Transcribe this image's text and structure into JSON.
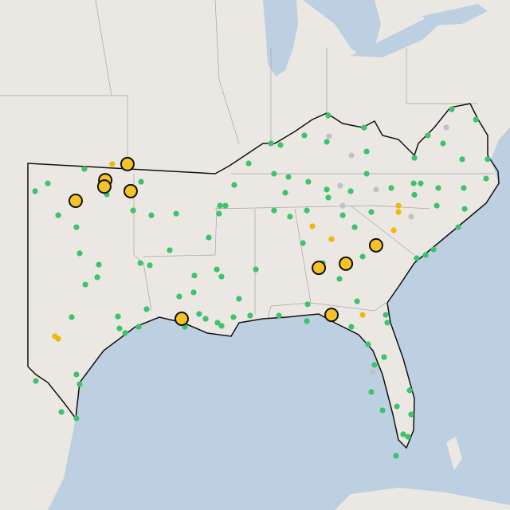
{
  "map": {
    "groups": [
      {
        "color": "#3cc46c",
        "outlined": false,
        "points": [
          [
            -96.94,
            36.76
          ],
          [
            -98.87,
            36.13
          ],
          [
            -99.54,
            35.79
          ],
          [
            -98.32,
            34.74
          ],
          [
            -97.36,
            34.22
          ],
          [
            -95.76,
            35.65
          ],
          [
            -93.95,
            36.2
          ],
          [
            -94.37,
            34.95
          ],
          [
            -93.41,
            34.74
          ],
          [
            -92.1,
            34.81
          ],
          [
            -97.19,
            33.08
          ],
          [
            -96.18,
            32.59
          ],
          [
            -96.89,
            31.72
          ],
          [
            -96.26,
            32.04
          ],
          [
            -93.99,
            32.66
          ],
          [
            -93.49,
            32.56
          ],
          [
            -92.44,
            33.22
          ],
          [
            -90.38,
            33.77
          ],
          [
            -89.79,
            35.16
          ],
          [
            -89.5,
            35.16
          ],
          [
            -89.04,
            36.06
          ],
          [
            -88.28,
            37.0
          ],
          [
            -87.1,
            37.87
          ],
          [
            -86.6,
            37.8
          ],
          [
            -85.34,
            38.22
          ],
          [
            -84.08,
            39.09
          ],
          [
            -82.19,
            38.56
          ],
          [
            -84.16,
            37.94
          ],
          [
            -82.06,
            37.52
          ],
          [
            -86.94,
            36.55
          ],
          [
            -86.18,
            36.41
          ],
          [
            -85.13,
            36.2
          ],
          [
            -86.35,
            35.72
          ],
          [
            -86.94,
            34.95
          ],
          [
            -86.1,
            34.68
          ],
          [
            -85.21,
            34.95
          ],
          [
            -84.16,
            35.86
          ],
          [
            -84.08,
            35.51
          ],
          [
            -82.9,
            35.79
          ],
          [
            -82.06,
            36.55
          ],
          [
            -79.54,
            37.24
          ],
          [
            -78.03,
            37.87
          ],
          [
            -77.57,
            39.36
          ],
          [
            -76.3,
            38.91
          ],
          [
            -75.68,
            37.18
          ],
          [
            -79.58,
            36.13
          ],
          [
            -79.21,
            36.13
          ],
          [
            -78.28,
            35.93
          ],
          [
            -76.94,
            35.93
          ],
          [
            -76.89,
            35.02
          ],
          [
            -78.36,
            35.16
          ],
          [
            -79.54,
            35.63
          ],
          [
            -80.76,
            35.93
          ],
          [
            -81.81,
            34.88
          ],
          [
            -83.32,
            34.74
          ],
          [
            -82.69,
            34.22
          ],
          [
            -84.37,
            32.66
          ],
          [
            -85.42,
            33.53
          ],
          [
            -87.9,
            32.38
          ],
          [
            -89.96,
            32.38
          ],
          [
            -91.14,
            32.11
          ],
          [
            -91.18,
            31.38
          ],
          [
            -91.94,
            31.2
          ],
          [
            -93.66,
            30.65
          ],
          [
            -94.08,
            29.88
          ],
          [
            -95.17,
            30.33
          ],
          [
            -95.09,
            29.81
          ],
          [
            -94.79,
            29.61
          ],
          [
            -97.61,
            30.3
          ],
          [
            -97.36,
            27.8
          ],
          [
            -97.19,
            27.38
          ],
          [
            -99.5,
            27.52
          ],
          [
            -98.15,
            26.17
          ],
          [
            -97.36,
            25.89
          ],
          [
            -90.89,
            30.44
          ],
          [
            -90.55,
            30.23
          ],
          [
            -89.92,
            30.06
          ],
          [
            -89.71,
            29.92
          ],
          [
            -89.08,
            30.3
          ],
          [
            -88.2,
            30.37
          ],
          [
            -86.68,
            30.37
          ],
          [
            -85.17,
            30.86
          ],
          [
            -85.21,
            30.13
          ],
          [
            -82.86,
            29.88
          ],
          [
            -81.98,
            29.12
          ],
          [
            -81.05,
            30.4
          ],
          [
            -80.97,
            30.06
          ],
          [
            -81.14,
            28.56
          ],
          [
            -81.81,
            27.04
          ],
          [
            -81.22,
            26.24
          ],
          [
            -80.46,
            26.41
          ],
          [
            -79.71,
            26.06
          ],
          [
            -79.79,
            27.11
          ],
          [
            -79.88,
            25.09
          ],
          [
            -80.13,
            25.2
          ],
          [
            -80.51,
            24.26
          ],
          [
            -79.42,
            32.87
          ],
          [
            -78.95,
            33.01
          ],
          [
            -78.53,
            33.25
          ],
          [
            -77.23,
            34.22
          ],
          [
            -75.76,
            36.34
          ],
          [
            -77.02,
            37.18
          ],
          [
            -78.83,
            38.22
          ],
          [
            -82.27,
            32.94
          ],
          [
            -83.49,
            31.97
          ],
          [
            -82.56,
            30.99
          ],
          [
            -81.64,
            28.22
          ],
          [
            -89.84,
            34.81
          ],
          [
            -91.64,
            29.88
          ],
          [
            -89.71,
            32.07
          ],
          [
            -88.79,
            31.1
          ]
        ]
      },
      {
        "color": "#c2c2c2",
        "outlined": false,
        "points": [
          [
            -84.04,
            38.18
          ],
          [
            -82.86,
            37.35
          ],
          [
            -77.86,
            38.56
          ],
          [
            -83.45,
            36.03
          ],
          [
            -81.56,
            35.86
          ],
          [
            -83.32,
            35.16
          ],
          [
            -79.71,
            34.68
          ],
          [
            -81.73,
            27.91
          ]
        ]
      },
      {
        "color": "#f2b705",
        "outlined": false,
        "points": [
          [
            -95.47,
            36.97
          ],
          [
            -98.49,
            29.47
          ],
          [
            -98.32,
            29.36
          ],
          [
            -84.92,
            34.26
          ],
          [
            -83.91,
            33.7
          ],
          [
            -80.38,
            35.16
          ],
          [
            -80.38,
            34.88
          ],
          [
            -80.63,
            34.09
          ],
          [
            -82.27,
            30.4
          ]
        ]
      },
      {
        "color": "#f5c227",
        "outlined": true,
        "points": [
          [
            -94.67,
            36.97
          ],
          [
            -95.84,
            36.27
          ],
          [
            -95.89,
            35.99
          ],
          [
            -94.5,
            35.79
          ],
          [
            -97.4,
            35.37
          ],
          [
            -91.81,
            30.23
          ],
          [
            -84.58,
            32.45
          ],
          [
            -83.15,
            32.63
          ],
          [
            -81.56,
            33.43
          ],
          [
            -83.91,
            30.4
          ]
        ]
      }
    ]
  }
}
